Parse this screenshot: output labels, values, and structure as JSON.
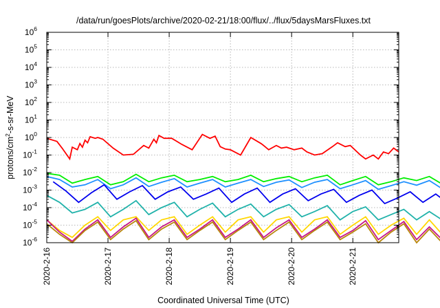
{
  "chart_data": {
    "type": "line",
    "title": "/data/run/goesPlots/archive/2020-02-21/18:00/flux/../flux/5daysMarsFluxes.txt",
    "xlabel": "Coordinated Universal Time (UTC)",
    "ylabel_prefix": "protons/cm",
    "ylabel_sup": "2",
    "ylabel_suffix": "-s-sr-MeV",
    "x_unit": "day",
    "x_range": [
      "2020-02-16T00:00",
      "2020-02-21T18:00"
    ],
    "x_ticks": [
      "2020-2-16",
      "2020-2-17",
      "2020-2-18",
      "2020-2-19",
      "2020-2-20",
      "2020-2-21"
    ],
    "y_scale": "log",
    "ylim": [
      1e-06,
      1000000.0
    ],
    "y_ticks": [
      {
        "base": "10",
        "exp": "-6"
      },
      {
        "base": "10",
        "exp": "-5"
      },
      {
        "base": "10",
        "exp": "-4"
      },
      {
        "base": "10",
        "exp": "-3"
      },
      {
        "base": "10",
        "exp": "-2"
      },
      {
        "base": "10",
        "exp": "-1"
      },
      {
        "base": "10",
        "exp": "0"
      },
      {
        "base": "10",
        "exp": "1"
      },
      {
        "base": "10",
        "exp": "2"
      },
      {
        "base": "10",
        "exp": "3"
      },
      {
        "base": "10",
        "exp": "4"
      },
      {
        "base": "10",
        "exp": "5"
      },
      {
        "base": "10",
        "exp": "6"
      }
    ],
    "grid": true,
    "series": [
      {
        "color": "#ff0000",
        "x": [
          "2020-02-16T00:00",
          "2020-02-16T04:00",
          "2020-02-16T06:00",
          "2020-02-16T09:00",
          "2020-02-16T10:00",
          "2020-02-16T12:00",
          "2020-02-16T13:00",
          "2020-02-16T14:00",
          "2020-02-16T15:00",
          "2020-02-16T16:00",
          "2020-02-16T17:00",
          "2020-02-16T19:00",
          "2020-02-16T20:00",
          "2020-02-16T22:00",
          "2020-02-17T02:00",
          "2020-02-17T06:00",
          "2020-02-17T10:00",
          "2020-02-17T14:00",
          "2020-02-17T16:00",
          "2020-02-17T18:00",
          "2020-02-17T19:00",
          "2020-02-17T20:00",
          "2020-02-17T22:00",
          "2020-02-18T01:00",
          "2020-02-18T05:00",
          "2020-02-18T09:00",
          "2020-02-18T13:00",
          "2020-02-18T16:00",
          "2020-02-18T18:00",
          "2020-02-18T20:00",
          "2020-02-18T22:00",
          "2020-02-19T00:00",
          "2020-02-19T04:00",
          "2020-02-19T08:00",
          "2020-02-19T12:00",
          "2020-02-19T13:00",
          "2020-02-19T15:00",
          "2020-02-19T18:00",
          "2020-02-19T20:00",
          "2020-02-19T22:00",
          "2020-02-20T01:00",
          "2020-02-20T04:00",
          "2020-02-20T06:00",
          "2020-02-20T09:00",
          "2020-02-20T12:00",
          "2020-02-20T16:00",
          "2020-02-20T18:00",
          "2020-02-20T21:00",
          "2020-02-20T23:00",
          "2020-02-21T03:00",
          "2020-02-21T05:00",
          "2020-02-21T08:00",
          "2020-02-21T10:00",
          "2020-02-21T12:00",
          "2020-02-21T14:00",
          "2020-02-21T16:00",
          "2020-02-21T18:00"
        ],
        "values": [
          0.9,
          0.6,
          0.25,
          0.06,
          0.28,
          0.2,
          0.45,
          0.28,
          0.7,
          0.5,
          1.1,
          0.9,
          1.0,
          0.8,
          0.25,
          0.1,
          0.11,
          0.35,
          0.25,
          0.8,
          0.5,
          1.3,
          0.9,
          0.9,
          0.4,
          0.2,
          1.5,
          0.9,
          1.2,
          0.3,
          0.22,
          0.2,
          0.1,
          1.0,
          0.45,
          0.35,
          0.2,
          0.35,
          0.25,
          0.28,
          0.2,
          0.25,
          0.15,
          0.1,
          0.12,
          0.3,
          0.5,
          0.3,
          0.35,
          0.1,
          0.06,
          0.1,
          0.06,
          0.15,
          0.12,
          0.25,
          0.15
        ]
      },
      {
        "color": "#00ee00",
        "x_start": "2020-02-16T00:00",
        "x_step_hours": 5,
        "values": [
          0.009,
          0.007,
          0.0025,
          0.004,
          0.006,
          0.002,
          0.003,
          0.008,
          0.003,
          0.005,
          0.007,
          0.003,
          0.004,
          0.006,
          0.003,
          0.004,
          0.007,
          0.003,
          0.0045,
          0.006,
          0.003,
          0.005,
          0.007,
          0.002,
          0.0035,
          0.006,
          0.002,
          0.003,
          0.005,
          0.0035,
          0.006,
          0.0022,
          0.004,
          0.006,
          0.003
        ]
      },
      {
        "color": "#1e90ff",
        "x_start": "2020-02-16T00:00",
        "x_step_hours": 5,
        "values": [
          0.006,
          0.004,
          0.0015,
          0.002,
          0.004,
          0.0012,
          0.002,
          0.005,
          0.0016,
          0.0028,
          0.0045,
          0.0015,
          0.0025,
          0.004,
          0.0015,
          0.0025,
          0.004,
          0.0016,
          0.0028,
          0.0038,
          0.0014,
          0.0028,
          0.004,
          0.0012,
          0.002,
          0.0035,
          0.0011,
          0.0018,
          0.003,
          0.0019,
          0.0035,
          0.0012,
          0.0022,
          0.0035,
          0.0015
        ]
      },
      {
        "color": "#0000ee",
        "x_start": "2020-02-16T02:30",
        "x_step_hours": 5,
        "values": [
          0.003,
          0.0009,
          0.0002,
          0.0007,
          0.002,
          0.0003,
          0.0008,
          0.0018,
          0.0003,
          0.0008,
          0.0015,
          0.0003,
          0.0006,
          0.0013,
          0.0002,
          0.0006,
          0.0013,
          0.0002,
          0.0006,
          0.0012,
          0.00025,
          0.0006,
          0.0011,
          0.0002,
          0.0005,
          0.001,
          0.00017,
          0.00035,
          0.0008,
          0.0002,
          0.0006,
          0.00017,
          0.0004,
          0.0007
        ]
      },
      {
        "color": "#20b2aa",
        "x_start": "2020-02-16T00:00",
        "x_step_hours": 5,
        "values": [
          0.0005,
          0.0002,
          5e-05,
          8e-05,
          0.0002,
          3e-05,
          8e-05,
          0.00025,
          4e-05,
          0.0001,
          0.0002,
          3e-05,
          8e-05,
          0.00018,
          3e-05,
          8e-05,
          0.00016,
          3e-05,
          8e-05,
          0.00015,
          3e-05,
          6e-05,
          0.00013,
          2e-05,
          6e-05,
          0.00011,
          2e-05,
          4e-05,
          8e-05,
          2e-05,
          6e-05,
          2e-05,
          4e-05,
          7e-05,
          1.5e-05
        ]
      },
      {
        "color": "#ffd700",
        "x_start": "2020-02-16T00:00",
        "x_step_hours": 5,
        "values": [
          2e-05,
          5e-06,
          2e-06,
          1e-05,
          3e-05,
          5e-06,
          2e-05,
          3e-05,
          5e-06,
          2e-05,
          3e-05,
          3e-06,
          1e-05,
          3e-05,
          4e-06,
          2e-05,
          3e-05,
          4e-06,
          2e-05,
          3e-05,
          4e-06,
          2e-05,
          3e-05,
          3e-06,
          1e-05,
          3e-05,
          3e-06,
          1e-05,
          2.5e-05,
          3e-06,
          2e-05,
          3e-06,
          1e-05,
          2.5e-05,
          3e-06
        ]
      },
      {
        "color": "#c71585",
        "x_start": "2020-02-16T00:00",
        "x_step_hours": 5,
        "values": [
          2e-05,
          4e-06,
          1.2e-06,
          6e-06,
          2e-05,
          2e-06,
          8e-06,
          2.5e-05,
          2e-06,
          8e-06,
          2e-05,
          2e-06,
          6e-06,
          2e-05,
          2e-06,
          6e-06,
          2e-05,
          2e-06,
          7e-06,
          2e-05,
          2e-06,
          6e-06,
          2e-05,
          2e-06,
          5e-06,
          1.8e-05,
          1.5e-06,
          5e-06,
          1.6e-05,
          1.5e-06,
          8e-06,
          1.5e-06,
          6e-06,
          1.5e-05,
          1.2e-06
        ]
      },
      {
        "color": "#b8860b",
        "x_start": "2020-02-16T00:00",
        "x_step_hours": 5,
        "values": [
          1.2e-05,
          3e-06,
          1e-06,
          5e-06,
          1.5e-05,
          1.5e-06,
          6e-06,
          1.8e-05,
          1.5e-06,
          6e-06,
          1.5e-05,
          1.5e-06,
          5e-06,
          1.5e-05,
          1.5e-06,
          5e-06,
          1.5e-05,
          1.5e-06,
          5e-06,
          1.5e-05,
          1.5e-06,
          5e-06,
          1.5e-05,
          1.5e-06,
          4e-06,
          1.2e-05,
          1e-06,
          4e-06,
          1.2e-05,
          1e-06,
          6e-06,
          1e-06,
          4e-06,
          1.2e-05,
          1e-06
        ]
      }
    ]
  }
}
